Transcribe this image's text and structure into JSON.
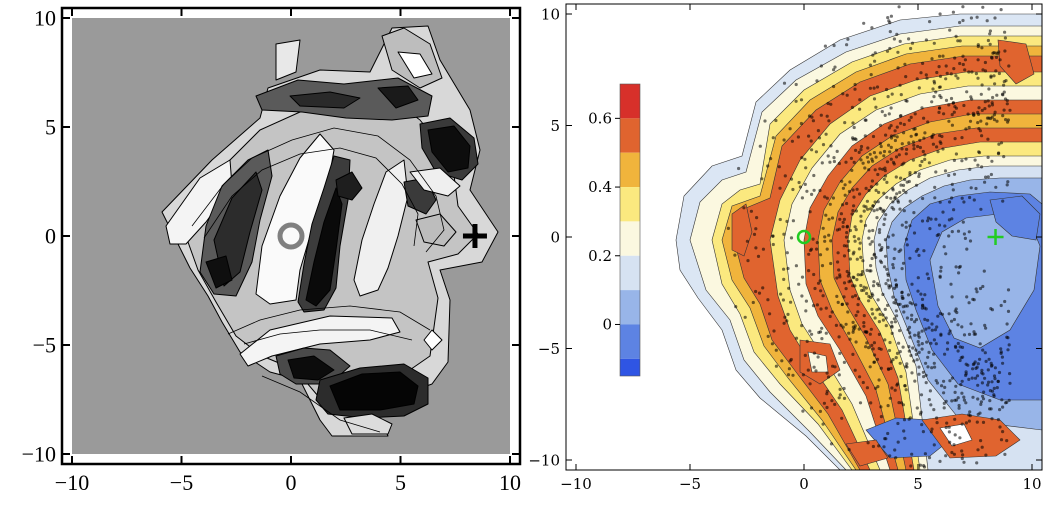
{
  "chart_data": [
    {
      "type": "contour",
      "panel": "left",
      "palette": "grayscale",
      "xlim": [
        -10,
        10
      ],
      "ylim": [
        -10,
        10
      ],
      "x_ticks": [
        {
          "value": -10,
          "label": "−10"
        },
        {
          "value": -5,
          "label": "−5"
        },
        {
          "value": 0,
          "label": "0"
        },
        {
          "value": 5,
          "label": "5"
        },
        {
          "value": 10,
          "label": "10"
        }
      ],
      "y_ticks": [
        {
          "value": 10,
          "label": "10"
        },
        {
          "value": 5,
          "label": "5"
        },
        {
          "value": 0,
          "label": "0"
        },
        {
          "value": -5,
          "label": "−5"
        },
        {
          "value": -10,
          "label": "−10"
        }
      ],
      "markers": [
        {
          "kind": "circle",
          "x": 0,
          "y": 0,
          "color": "#808080"
        },
        {
          "kind": "plus",
          "x": 8.4,
          "y": 0,
          "color": "#000000"
        }
      ],
      "background_color": "#9a9a9a"
    },
    {
      "type": "contour_scatter",
      "panel": "right",
      "palette": "blue-white-red",
      "xlim": [
        -10,
        10
      ],
      "ylim": [
        -10,
        10
      ],
      "x_ticks": [
        {
          "value": -10,
          "label": "−10"
        },
        {
          "value": -5,
          "label": "−5"
        },
        {
          "value": 0,
          "label": "0"
        },
        {
          "value": 5,
          "label": "5"
        },
        {
          "value": 10,
          "label": "10"
        }
      ],
      "y_ticks": [
        {
          "value": 10,
          "label": "10"
        },
        {
          "value": 5,
          "label": "5"
        },
        {
          "value": 0,
          "label": "0"
        },
        {
          "value": -5,
          "label": "−5"
        },
        {
          "value": -10,
          "label": "−10"
        }
      ],
      "colorbar": {
        "range": [
          -0.15,
          0.7
        ],
        "tick_labels": [
          {
            "value": 0.6,
            "label": "0.6"
          },
          {
            "value": 0.4,
            "label": "0.4"
          },
          {
            "value": 0.2,
            "label": "0.2"
          },
          {
            "value": 0,
            "label": "0"
          }
        ],
        "levels": [
          {
            "lo": 0.6,
            "hi": 0.7,
            "color": "#d7302a"
          },
          {
            "lo": 0.5,
            "hi": 0.6,
            "color": "#e0642f"
          },
          {
            "lo": 0.4,
            "hi": 0.5,
            "color": "#f0b43c"
          },
          {
            "lo": 0.3,
            "hi": 0.4,
            "color": "#fbe97f"
          },
          {
            "lo": 0.2,
            "hi": 0.3,
            "color": "#fbf8e0"
          },
          {
            "lo": 0.1,
            "hi": 0.2,
            "color": "#d6e2f2"
          },
          {
            "lo": 0.0,
            "hi": 0.1,
            "color": "#98b5e8"
          },
          {
            "lo": -0.1,
            "hi": 0.0,
            "color": "#5d83e3"
          },
          {
            "lo": -0.15,
            "hi": -0.1,
            "color": "#2f55e4"
          }
        ]
      },
      "markers": [
        {
          "kind": "circle",
          "x": 0,
          "y": 0,
          "color": "#22cc22"
        },
        {
          "kind": "plus",
          "x": 8.4,
          "y": 0,
          "color": "#22cc22"
        }
      ],
      "background_color": "#ffffff"
    }
  ]
}
